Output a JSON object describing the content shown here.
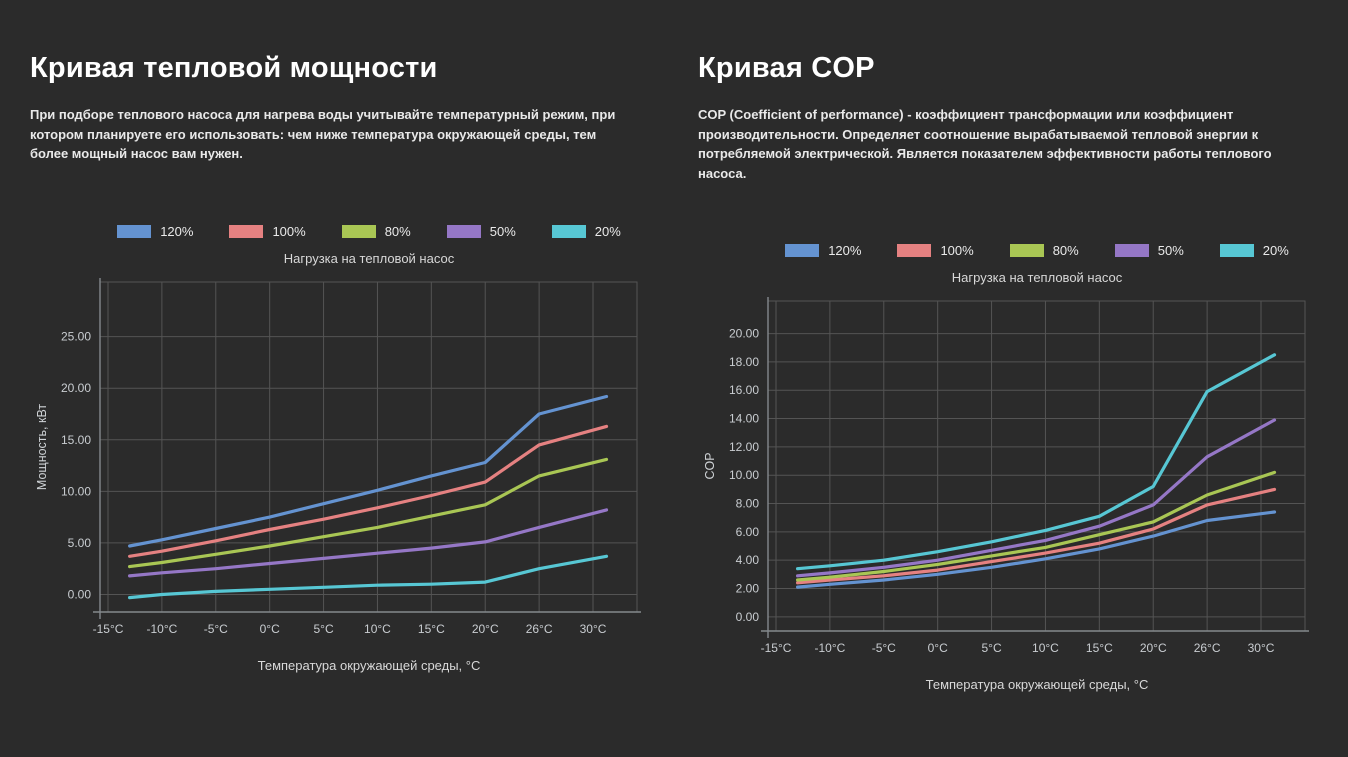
{
  "page": {
    "background": "#2b2b2b"
  },
  "panels": [
    {
      "title": "Кривая тепловой мощности",
      "description": "При подборе теплового насоса для нагрева воды учитывайте температурный режим, при котором планируете его использовать: чем ниже температура окружающей среды, тем более мощный насос вам нужен."
    },
    {
      "title": "Кривая COP",
      "description": "COP (Coefficient of performance) - коэффициент трансформации или коэффициент производительности. Определяет соотношение вырабатываемой тепловой энергии к потребляемой электрической. Является показателем эффективности работы теплового насоса."
    }
  ],
  "chart_data": [
    {
      "type": "line",
      "title": "Нагрузка на тепловой насос",
      "xlabel": "Температура окружающей среды, °C",
      "ylabel": "Мощность, кВт",
      "grid": true,
      "legend_position": "top",
      "x_tick_values": [
        -15,
        -10,
        -5,
        0,
        5,
        10,
        15,
        20,
        26,
        30
      ],
      "x_tick_labels": [
        "-15°C",
        "-10°C",
        "-5°C",
        "0°C",
        "5°C",
        "10°C",
        "15°C",
        "20°C",
        "26°C",
        "30°C"
      ],
      "y_tick_values": [
        0,
        5,
        10,
        15,
        20,
        25
      ],
      "y_tick_labels": [
        "0.00",
        "5.00",
        "10.00",
        "15.00",
        "20.00",
        "25.00"
      ],
      "ylim": [
        -1.7,
        30.3
      ],
      "x": [
        -13,
        -10,
        -5,
        0,
        5,
        10,
        15,
        20,
        26,
        31
      ],
      "series": [
        {
          "name": "120%",
          "color": "#6493d1",
          "values": [
            4.7,
            5.3,
            6.4,
            7.5,
            8.8,
            10.1,
            11.5,
            12.8,
            17.5,
            19.2
          ]
        },
        {
          "name": "100%",
          "color": "#e58181",
          "values": [
            3.7,
            4.2,
            5.2,
            6.3,
            7.3,
            8.4,
            9.6,
            10.9,
            14.5,
            16.3
          ]
        },
        {
          "name": "80%",
          "color": "#a9c654",
          "values": [
            2.7,
            3.1,
            3.9,
            4.7,
            5.6,
            6.5,
            7.6,
            8.7,
            11.5,
            13.1
          ]
        },
        {
          "name": "50%",
          "color": "#9577c6",
          "values": [
            1.8,
            2.1,
            2.5,
            3.0,
            3.5,
            4.0,
            4.5,
            5.1,
            6.5,
            8.2
          ]
        },
        {
          "name": "20%",
          "color": "#57c7d4",
          "values": [
            -0.3,
            0.0,
            0.3,
            0.5,
            0.7,
            0.9,
            1.0,
            1.2,
            2.5,
            3.7
          ]
        }
      ]
    },
    {
      "type": "line",
      "title": "Нагрузка на тепловой насос",
      "xlabel": "Температура окружающей среды, °C",
      "ylabel": "COP",
      "grid": true,
      "legend_position": "top",
      "x_tick_values": [
        -15,
        -10,
        -5,
        0,
        5,
        10,
        15,
        20,
        26,
        30
      ],
      "x_tick_labels": [
        "-15°C",
        "-10°C",
        "-5°C",
        "0°C",
        "5°C",
        "10°C",
        "15°C",
        "20°C",
        "26°C",
        "30°C"
      ],
      "y_tick_values": [
        0,
        2,
        4,
        6,
        8,
        10,
        12,
        14,
        16,
        18,
        20
      ],
      "y_tick_labels": [
        "0.00",
        "2.00",
        "4.00",
        "6.00",
        "8.00",
        "10.00",
        "12.00",
        "14.00",
        "16.00",
        "18.00",
        "20.00"
      ],
      "ylim": [
        -1.0,
        22.3
      ],
      "x": [
        -13,
        -10,
        -5,
        0,
        5,
        10,
        15,
        20,
        26,
        31
      ],
      "series": [
        {
          "name": "120%",
          "color": "#6493d1",
          "values": [
            2.1,
            2.3,
            2.6,
            3.0,
            3.5,
            4.1,
            4.8,
            5.7,
            6.8,
            7.4
          ]
        },
        {
          "name": "100%",
          "color": "#e58181",
          "values": [
            2.4,
            2.6,
            2.9,
            3.3,
            3.9,
            4.5,
            5.2,
            6.2,
            7.9,
            9.0
          ]
        },
        {
          "name": "80%",
          "color": "#a9c654",
          "values": [
            2.6,
            2.8,
            3.2,
            3.7,
            4.3,
            4.9,
            5.8,
            6.7,
            8.6,
            10.2
          ]
        },
        {
          "name": "50%",
          "color": "#9577c6",
          "values": [
            2.9,
            3.1,
            3.5,
            4.0,
            4.7,
            5.4,
            6.4,
            7.9,
            11.3,
            13.9
          ]
        },
        {
          "name": "20%",
          "color": "#57c7d4",
          "values": [
            3.4,
            3.6,
            4.0,
            4.6,
            5.3,
            6.1,
            7.1,
            9.2,
            15.9,
            18.5
          ]
        }
      ]
    }
  ],
  "colors": {
    "grid": "#545454",
    "axis": "#84898d"
  }
}
